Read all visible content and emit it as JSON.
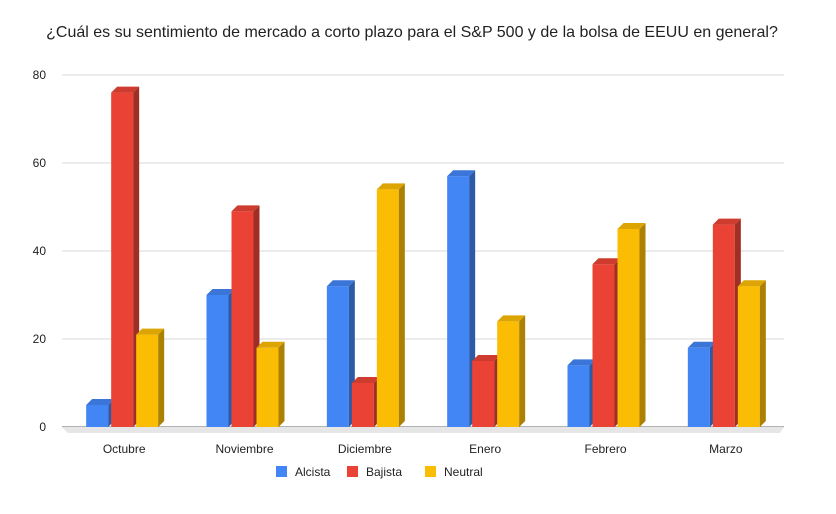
{
  "chart_data": {
    "type": "bar",
    "title": "¿Cuál es su sentimiento de mercado a corto plazo para el S&P 500 y de la bolsa de EEUU en general?",
    "categories": [
      "Octubre",
      "Noviembre",
      "Diciembre",
      "Enero",
      "Febrero",
      "Marzo"
    ],
    "series": [
      {
        "name": "Alcista",
        "color": "#4285f4",
        "values": [
          5,
          30,
          32,
          57,
          14,
          18
        ]
      },
      {
        "name": "Bajista",
        "color": "#ea4335",
        "values": [
          76,
          49,
          10,
          15,
          37,
          46
        ]
      },
      {
        "name": "Neutral",
        "color": "#fbbc04",
        "values": [
          21,
          18,
          54,
          24,
          45,
          32
        ]
      }
    ],
    "yticks": [
      "0",
      "20",
      "40",
      "60",
      "80"
    ],
    "ylim": [
      0,
      80
    ],
    "grid": true,
    "legend": "bottom",
    "style": "3d-bar"
  }
}
